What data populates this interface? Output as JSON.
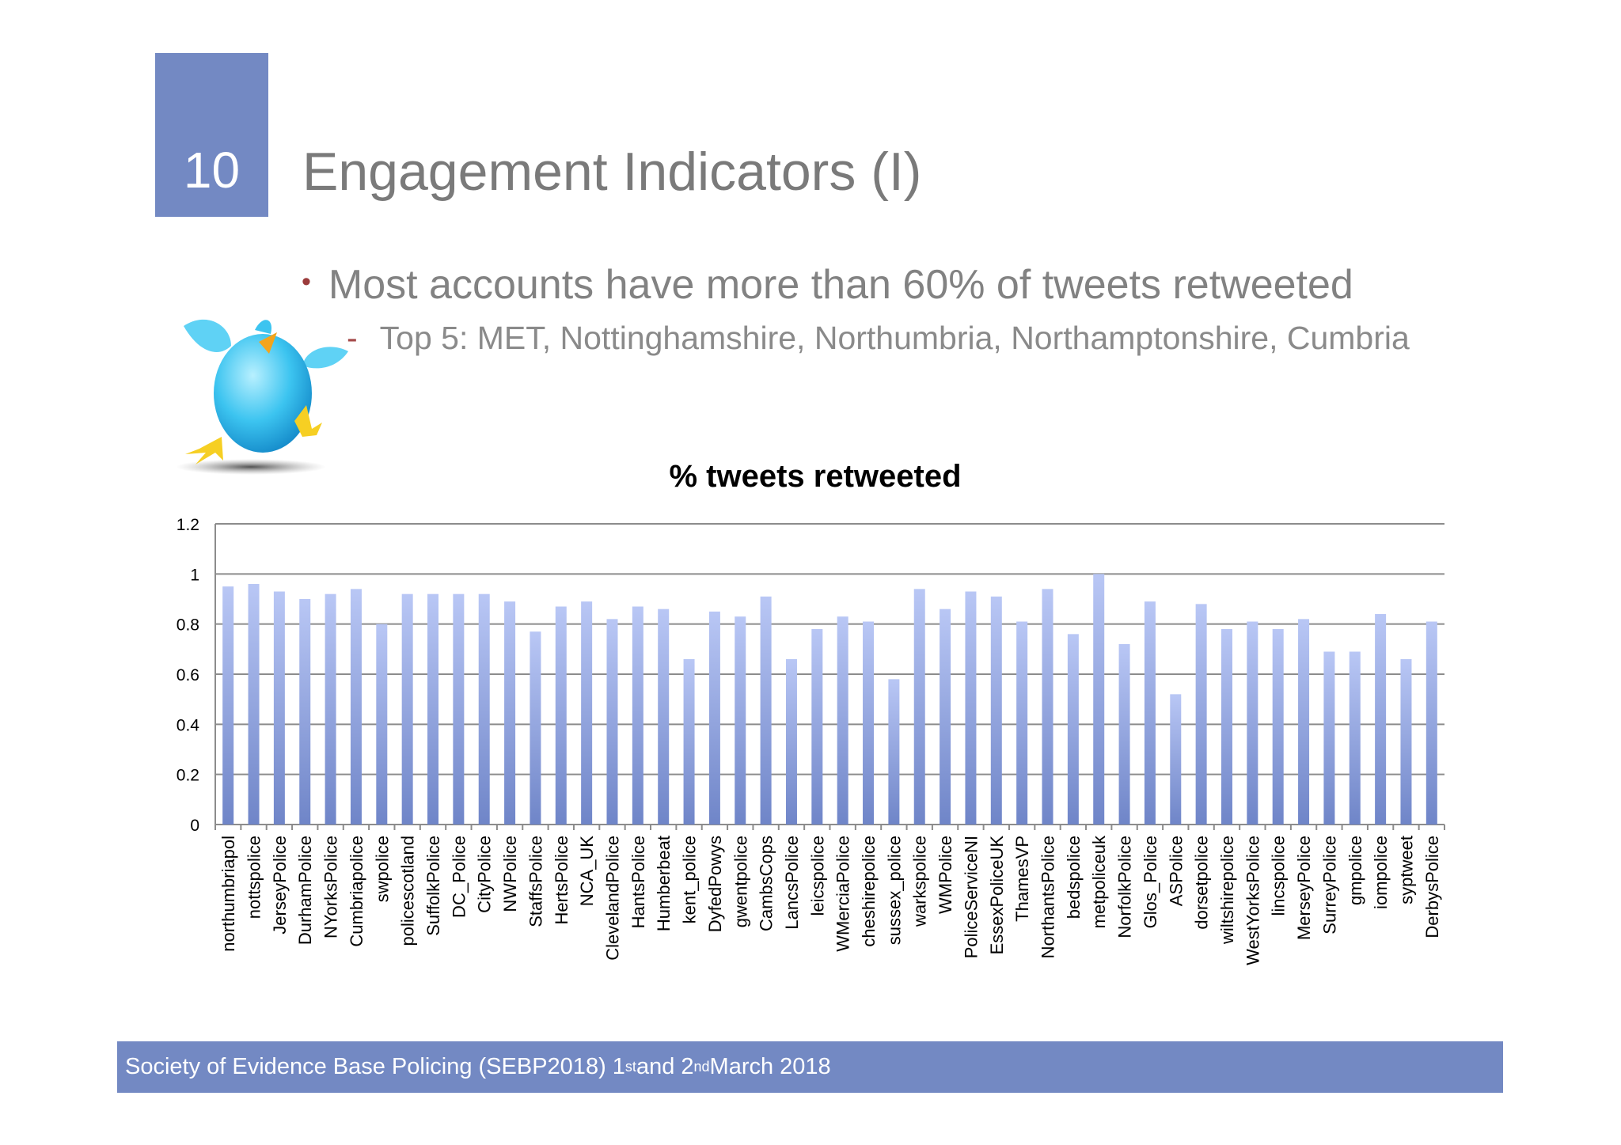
{
  "slide": {
    "number": "10",
    "title": "Engagement Indicators (I)",
    "bullet": "Most accounts have more than 60% of tweets retweeted",
    "bullet_marker": "•",
    "subbullet": "Top 5: MET, Nottinghamshire, Northumbria, Northamptonshire, Cumbria",
    "subbullet_marker": "-"
  },
  "footer": {
    "text_a": "Society of Evidence Base Policing (SEBP2018) 1",
    "sup_a": "st",
    "text_b": " and 2",
    "sup_b": "nd",
    "text_c": " March 2018"
  },
  "colors": {
    "accent": "#7389c3",
    "bar_top": "#b9c7f5",
    "bar_bottom": "#6f85c8"
  },
  "icons": {
    "illustration": "blue-bird-mascot"
  },
  "chart_data": {
    "type": "bar",
    "title": "% tweets retweeted",
    "xlabel": "",
    "ylabel": "",
    "ylim": [
      0,
      1.2
    ],
    "yticks": [
      "0",
      "0.2",
      "0.4",
      "0.6",
      "0.8",
      "1",
      "1.2"
    ],
    "grid": true,
    "categories": [
      "northumbriapol",
      "nottspolice",
      "JerseyPolice",
      "DurhamPolice",
      "NYorksPolice",
      "Cumbriapolice",
      "swpolice",
      "policescotland",
      "SuffolkPolice",
      "DC_Police",
      "CityPolice",
      "NWPolice",
      "StaffsPolice",
      "HertsPolice",
      "NCA_UK",
      "ClevelandPolice",
      "HantsPolice",
      "Humberbeat",
      "kent_police",
      "DyfedPowys",
      "gwentpolice",
      "CambsCops",
      "LancsPolice",
      "leicspolice",
      "WMerciaPolice",
      "cheshirepolice",
      "sussex_police",
      "warkspolice",
      "WMPolice",
      "PoliceServiceNI",
      "EssexPoliceUK",
      "ThamesVP",
      "NorthantsPolice",
      "bedspolice",
      "metpoliceuk",
      "NorfolkPolice",
      "Glos_Police",
      "ASPolice",
      "dorsetpolice",
      "wiltshirepolice",
      "WestYorksPolice",
      "lincspolice",
      "MerseyPolice",
      "SurreyPolice",
      "gmpolice",
      "iompolice",
      "syptweet",
      "DerbysPolice"
    ],
    "values": [
      0.95,
      0.96,
      0.93,
      0.9,
      0.92,
      0.94,
      0.8,
      0.92,
      0.92,
      0.92,
      0.92,
      0.89,
      0.77,
      0.87,
      0.89,
      0.82,
      0.87,
      0.86,
      0.66,
      0.85,
      0.83,
      0.91,
      0.66,
      0.78,
      0.83,
      0.81,
      0.58,
      0.94,
      0.86,
      0.93,
      0.91,
      0.81,
      0.94,
      0.76,
      1.0,
      0.72,
      0.89,
      0.52,
      0.88,
      0.78,
      0.81,
      0.78,
      0.82,
      0.69,
      0.69,
      0.84,
      0.66,
      0.81
    ]
  }
}
